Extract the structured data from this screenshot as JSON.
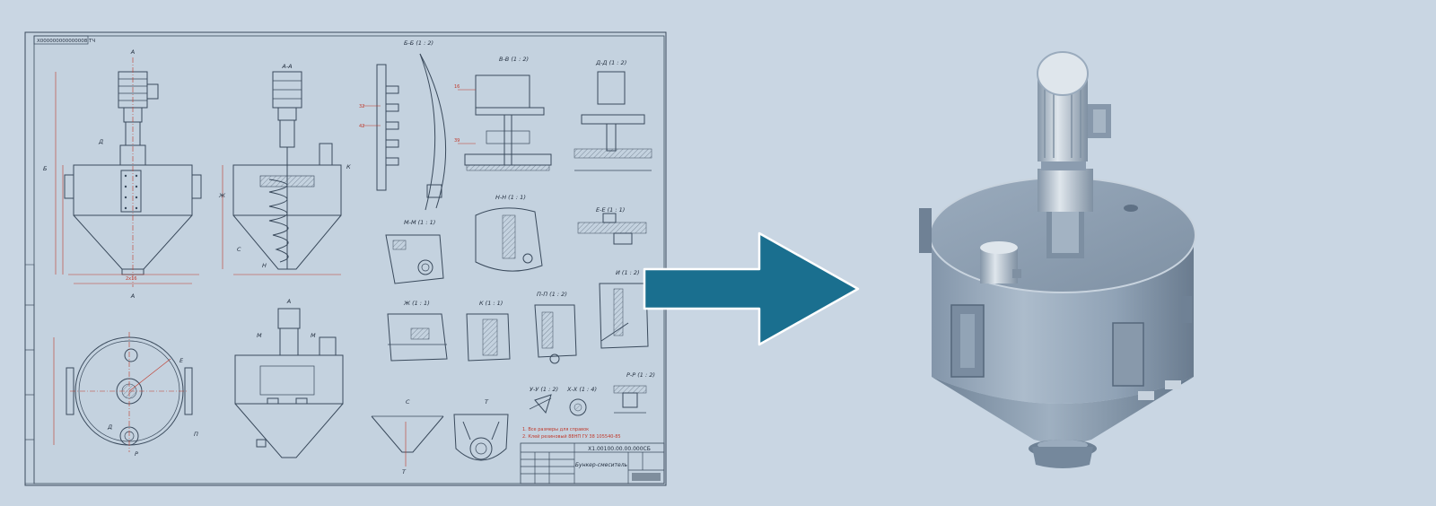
{
  "drawing": {
    "doc_code": "Х000000000000008 ТЧ",
    "designation": "Х1.00100.00.00.000СБ",
    "title": "Бункер-смеситель",
    "notes": [
      "1. Все размеры для справок",
      "2. Клей резиновый 88НП ГУ 38 105540-85"
    ],
    "section_labels": {
      "aa": "А-А",
      "a": "А",
      "bb": "Б-Б (1 : 2)",
      "vv": "В-В (1 : 2)",
      "dd": "Д-Д (1 : 2)",
      "ee": "Е-Е (1 : 1)",
      "mm": "М-М (1 : 1)",
      "nn": "Н-Н (1 : 1)",
      "zh": "Ж (1 : 1)",
      "k": "К (1 : 1)",
      "pp": "П-П (1 : 2)",
      "i": "И (1 : 2)",
      "s": "С",
      "t": "Т",
      "uu": "У-У (1 : 2)",
      "xx": "Х-Х (1 : 4)",
      "rr": "Р-Р (1 : 2)"
    }
  },
  "arrow": {
    "color": "#1a6f8f",
    "outline": "#ffffff"
  },
  "model": {
    "icon": "hopper-mixer-3d-icon"
  },
  "colors": {
    "background": "#c9d6e3",
    "paper": "#c4d2df",
    "line": "#3a4a5c",
    "dimension": "#c0392b"
  }
}
